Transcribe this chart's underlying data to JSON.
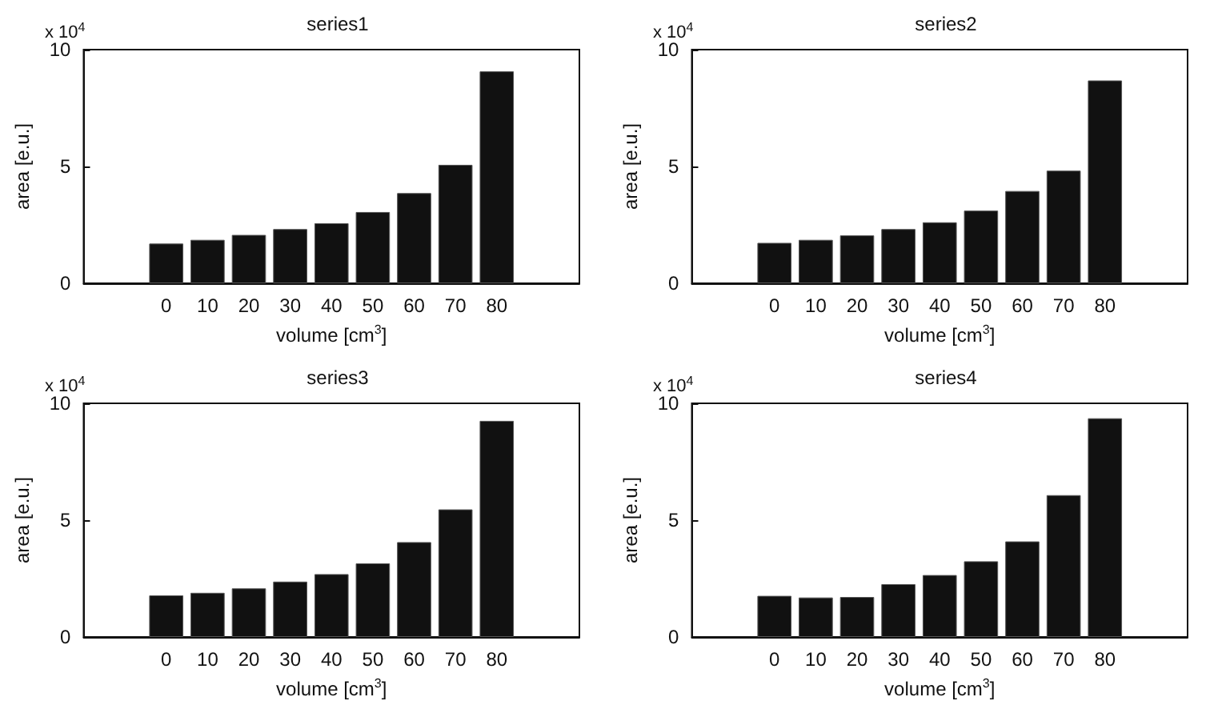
{
  "chart_data": [
    {
      "type": "bar",
      "title": "series1",
      "xlabel": "volume [cm$^{3}$]",
      "ylabel": "area [e.u.]",
      "annotations": [
        "x 10$^{4}$"
      ],
      "x": [
        0,
        10,
        20,
        30,
        40,
        50,
        60,
        70,
        80
      ],
      "values": [
        1.7,
        1.86,
        2.07,
        2.32,
        2.57,
        3.05,
        3.86,
        5.07,
        9.07
      ],
      "color": "#111111",
      "xlim": [
        -20,
        100
      ],
      "xticks": [
        0,
        10,
        20,
        30,
        40,
        50,
        60,
        70,
        80
      ],
      "ylim": [
        0,
        10
      ],
      "yticks": [
        0,
        5,
        10
      ],
      "grid": false
    },
    {
      "type": "bar",
      "title": "series2",
      "xlabel": "volume [cm$^{3}$]",
      "ylabel": "area [e.u.]",
      "annotations": [
        "x 10$^{4}$"
      ],
      "x": [
        0,
        10,
        20,
        30,
        40,
        50,
        60,
        70,
        80
      ],
      "values": [
        1.73,
        1.86,
        2.05,
        2.32,
        2.61,
        3.11,
        3.95,
        4.82,
        8.68
      ],
      "color": "#111111",
      "xlim": [
        -20,
        100
      ],
      "xticks": [
        0,
        10,
        20,
        30,
        40,
        50,
        60,
        70,
        80
      ],
      "ylim": [
        0,
        10
      ],
      "yticks": [
        0,
        5,
        10
      ],
      "grid": false
    },
    {
      "type": "bar",
      "title": "series3",
      "xlabel": "volume [cm$^{3}$]",
      "ylabel": "area [e.u.]",
      "annotations": [
        "x 10$^{4}$"
      ],
      "x": [
        0,
        10,
        20,
        30,
        40,
        50,
        60,
        70,
        80
      ],
      "values": [
        1.78,
        1.89,
        2.08,
        2.37,
        2.69,
        3.15,
        4.06,
        5.46,
        9.25
      ],
      "color": "#111111",
      "xlim": [
        -20,
        100
      ],
      "xticks": [
        0,
        10,
        20,
        30,
        40,
        50,
        60,
        70,
        80
      ],
      "ylim": [
        0,
        10
      ],
      "yticks": [
        0,
        5,
        10
      ],
      "grid": false
    },
    {
      "type": "bar",
      "title": "series4",
      "xlabel": "volume [cm$^{3}$]",
      "ylabel": "area [e.u.]",
      "annotations": [
        "x 10$^{4}$"
      ],
      "x": [
        0,
        10,
        20,
        30,
        40,
        50,
        60,
        70,
        80
      ],
      "values": [
        1.76,
        1.69,
        1.71,
        2.26,
        2.65,
        3.24,
        4.09,
        6.07,
        9.36
      ],
      "color": "#111111",
      "xlim": [
        -20,
        100
      ],
      "xticks": [
        0,
        10,
        20,
        30,
        40,
        50,
        60,
        70,
        80
      ],
      "ylim": [
        0,
        10
      ],
      "yticks": [
        0,
        5,
        10
      ],
      "grid": false
    }
  ]
}
